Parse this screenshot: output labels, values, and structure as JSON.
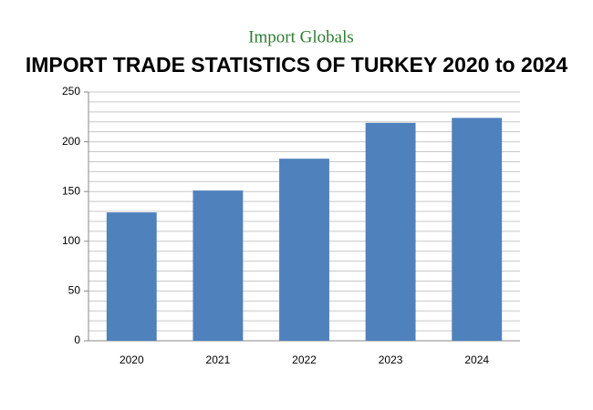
{
  "brand": "Import Globals",
  "chart_data": {
    "type": "bar",
    "title": "IMPORT TRADE STATISTICS OF TURKEY 2020 to 2024",
    "categories": [
      "2020",
      "2021",
      "2022",
      "2023",
      "2024"
    ],
    "values": [
      129,
      151,
      183,
      219,
      224
    ],
    "color": "#4f81bd",
    "ylim": [
      0,
      250
    ],
    "yticks": [
      0,
      50,
      100,
      150,
      200,
      250
    ],
    "minor_yticks": [
      10,
      20,
      30,
      40,
      60,
      70,
      80,
      90,
      110,
      120,
      130,
      140,
      160,
      170,
      180,
      190,
      210,
      220,
      230,
      240
    ],
    "grid": true
  }
}
